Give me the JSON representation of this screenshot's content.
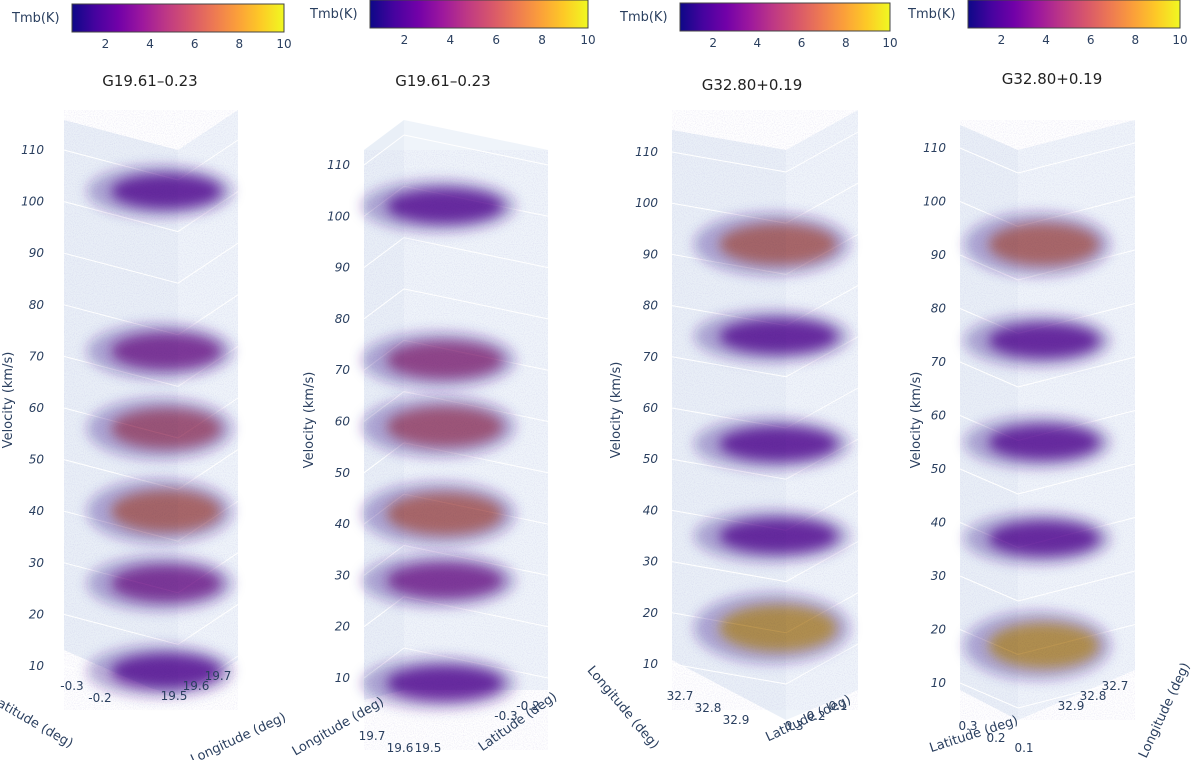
{
  "colors": {
    "scale": [
      "#0d0887",
      "#46039f",
      "#7201a8",
      "#9c179e",
      "#bd3786",
      "#d8576b",
      "#ed7953",
      "#fb9f3a",
      "#fdca26",
      "#f0f921"
    ],
    "cube_face": "#e5ecf6",
    "grid": "#ffffff",
    "axis_text": "#2a3f5f"
  },
  "chart_data": [
    {
      "type": "volume",
      "title": "G19.61–0.23",
      "colorbar": {
        "label": "Tmb(K)",
        "ticks": [
          2,
          4,
          6,
          8,
          10
        ],
        "range": [
          0.5,
          10
        ]
      },
      "zlabel": "Velocity (km/s)",
      "zticks": [
        10,
        20,
        30,
        40,
        50,
        60,
        70,
        80,
        90,
        100,
        110
      ],
      "xlabel": "Latitude (deg)",
      "xticks": [
        "-0.3",
        "-0.2"
      ],
      "ylabel": "Longitude (deg)",
      "yticks": [
        "19.7",
        "19.6",
        "19.5"
      ],
      "emission": [
        {
          "velocity": 102,
          "intensity": 3.0
        },
        {
          "velocity": 71,
          "intensity": 4.0
        },
        {
          "velocity": 56,
          "intensity": 6.0
        },
        {
          "velocity": 40,
          "intensity": 7.0
        },
        {
          "velocity": 26,
          "intensity": 4.0
        },
        {
          "velocity": 9,
          "intensity": 3.0
        }
      ]
    },
    {
      "type": "volume",
      "title": "G19.61–0.23",
      "colorbar": {
        "label": "Tmb(K)",
        "ticks": [
          2,
          4,
          6,
          8,
          10
        ],
        "range": [
          0.5,
          10
        ]
      },
      "zlabel": "Velocity (km/s)",
      "zticks": [
        10,
        20,
        30,
        40,
        50,
        60,
        70,
        80,
        90,
        100,
        110
      ],
      "xlabel": "Longitude (deg)",
      "xticks": [
        "19.7",
        "19.6",
        "19.5"
      ],
      "ylabel": "Latitude (deg)",
      "yticks": [
        "-0.2",
        "-0.3"
      ],
      "emission": [
        {
          "velocity": 102,
          "intensity": 3.0
        },
        {
          "velocity": 72,
          "intensity": 4.5
        },
        {
          "velocity": 59,
          "intensity": 6.0
        },
        {
          "velocity": 42,
          "intensity": 7.0
        },
        {
          "velocity": 29,
          "intensity": 3.5
        },
        {
          "velocity": 9,
          "intensity": 3.0
        }
      ]
    },
    {
      "type": "volume",
      "title": "G32.80+0.19",
      "colorbar": {
        "label": "Tmb(K)",
        "ticks": [
          2,
          4,
          6,
          8,
          10
        ],
        "range": [
          0.5,
          10
        ]
      },
      "zlabel": "Velocity (km/s)",
      "zticks": [
        10,
        20,
        30,
        40,
        50,
        60,
        70,
        80,
        90,
        100,
        110
      ],
      "xlabel": "Longitude (deg)",
      "xticks": [
        "32.7",
        "32.8",
        "32.9"
      ],
      "ylabel": "Latitude (deg)",
      "yticks": [
        "0.1",
        "0.2",
        "0.3"
      ],
      "emission": [
        {
          "velocity": 92,
          "intensity": 6.5
        },
        {
          "velocity": 74,
          "intensity": 3.0
        },
        {
          "velocity": 53,
          "intensity": 3.0
        },
        {
          "velocity": 35,
          "intensity": 3.0
        },
        {
          "velocity": 17,
          "intensity": 9.0
        }
      ]
    },
    {
      "type": "volume",
      "title": "G32.80+0.19",
      "colorbar": {
        "label": "Tmb(K)",
        "ticks": [
          2,
          4,
          6,
          8,
          10
        ],
        "range": [
          0.5,
          10
        ]
      },
      "zlabel": "Velocity (km/s)",
      "zticks": [
        10,
        20,
        30,
        40,
        50,
        60,
        70,
        80,
        90,
        100,
        110
      ],
      "xlabel": "Latitude (deg)",
      "xticks": [
        "0.3",
        "0.2",
        "0.1"
      ],
      "ylabel": "Longitude (deg)",
      "yticks": [
        "32.7",
        "32.8",
        "32.9"
      ],
      "emission": [
        {
          "velocity": 92,
          "intensity": 7.0
        },
        {
          "velocity": 74,
          "intensity": 3.0
        },
        {
          "velocity": 55,
          "intensity": 3.0
        },
        {
          "velocity": 37,
          "intensity": 3.0
        },
        {
          "velocity": 17,
          "intensity": 8.5
        }
      ]
    }
  ]
}
